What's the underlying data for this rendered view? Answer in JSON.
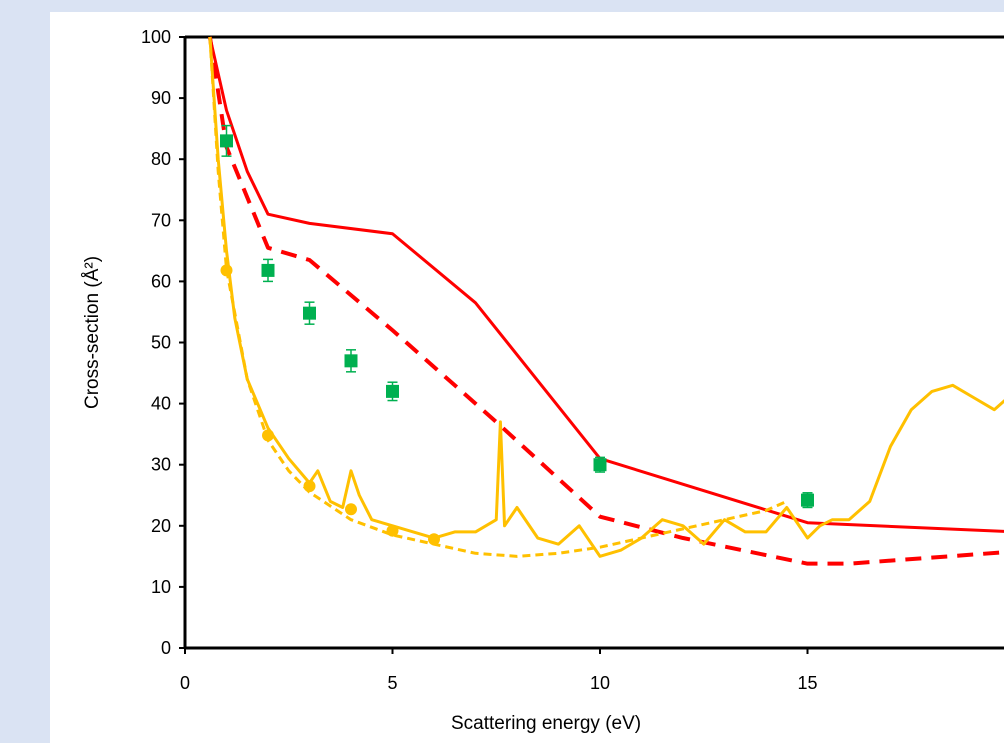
{
  "chart_data": {
    "type": "line",
    "title": "",
    "xlabel": "Scattering energy (eV)",
    "ylabel": "Cross-section (Å²)",
    "xlim": [
      0,
      20
    ],
    "ylim": [
      0,
      100
    ],
    "x_ticks": [
      0,
      5,
      10,
      15
    ],
    "y_ticks": [
      0,
      10,
      20,
      30,
      40,
      50,
      60,
      70,
      80,
      90,
      100
    ],
    "grid": false,
    "legend": "none",
    "colors": {
      "red": "#ff0000",
      "gold": "#ffc000",
      "green": "#00b050",
      "errorbar": "#00b050"
    },
    "series": [
      {
        "style": "red-solid",
        "x": [
          0.6,
          1,
          1.5,
          2,
          3,
          5,
          7,
          10,
          15,
          20
        ],
        "y": [
          100,
          88,
          78,
          71,
          69.5,
          67.8,
          56.5,
          31,
          20.5,
          19
        ]
      },
      {
        "style": "red-dashed",
        "x": [
          0.6,
          1,
          2,
          3,
          5,
          7.5,
          10,
          12,
          15,
          16,
          20
        ],
        "y": [
          100,
          82,
          65.5,
          63.5,
          52,
          37,
          21.5,
          18,
          13.8,
          13.8,
          15.8
        ]
      },
      {
        "style": "gold-solid",
        "x": [
          0.6,
          0.8,
          1,
          1.2,
          1.5,
          2,
          2.5,
          3,
          3.2,
          3.5,
          3.8,
          4,
          4.2,
          4.5,
          5,
          5.5,
          6,
          6.5,
          7,
          7.5,
          7.6,
          7.7,
          8,
          8.5,
          9,
          9.5,
          10,
          10.5,
          11,
          11.5,
          12,
          12.5,
          13,
          13.5,
          14,
          14.5,
          15,
          15.3,
          15.6,
          16,
          16.5,
          17,
          17.5,
          18,
          18.5,
          19,
          19.5,
          20
        ],
        "y": [
          100,
          80,
          65,
          54,
          44,
          36,
          31,
          27,
          29,
          24,
          23,
          29,
          25,
          21,
          20,
          19,
          18,
          19,
          19,
          21,
          37,
          20,
          23,
          18,
          17,
          20,
          15,
          16,
          18,
          21,
          20,
          17,
          21,
          19,
          19,
          23,
          18,
          20,
          21,
          21,
          24,
          33,
          39,
          42,
          43,
          41,
          39,
          42
        ]
      },
      {
        "style": "gold-dashed",
        "x": [
          0.6,
          0.8,
          1,
          1.5,
          2,
          2.5,
          3,
          4,
          5,
          6,
          7,
          8,
          9,
          10,
          11,
          12,
          13,
          14,
          14.5
        ],
        "y": [
          100,
          78,
          62,
          44,
          34,
          29,
          25.5,
          21,
          18.5,
          17,
          15.5,
          15,
          15.5,
          16.5,
          18,
          19.5,
          21,
          22.5,
          24
        ]
      },
      {
        "style": "gold-dots",
        "x": [
          1,
          2,
          3,
          4,
          5,
          6
        ],
        "y": [
          61.8,
          34.8,
          26.5,
          22.7,
          19.2,
          17.8
        ]
      },
      {
        "style": "green-squares",
        "x": [
          1,
          2,
          3,
          4,
          5,
          10,
          15
        ],
        "y": [
          83,
          61.8,
          54.8,
          47,
          42,
          30,
          24.2
        ],
        "error": [
          2.5,
          1.8,
          1.8,
          1.8,
          1.5,
          1.2,
          1.2
        ]
      }
    ]
  }
}
